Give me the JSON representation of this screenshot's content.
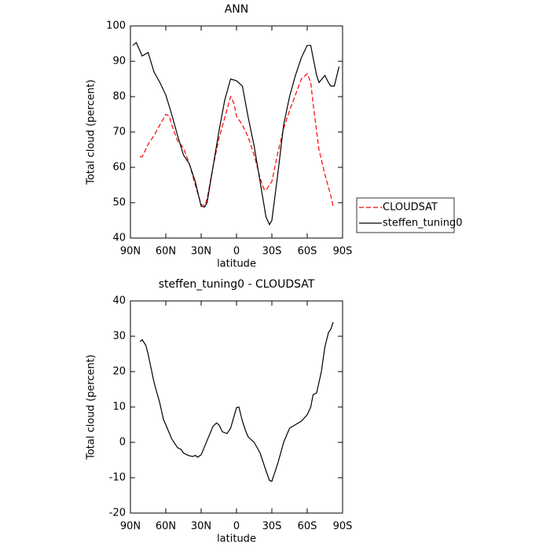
{
  "chart_data": [
    {
      "type": "line",
      "title": "ANN",
      "x_label": "latitude",
      "y_label": "Total cloud (percent)",
      "xlim": [
        90,
        -90
      ],
      "xticks": [
        {
          "value": 90,
          "label": "90N"
        },
        {
          "value": 60,
          "label": "60N"
        },
        {
          "value": 30,
          "label": "30N"
        },
        0,
        {
          "value": -30,
          "label": "30S"
        },
        {
          "value": -60,
          "label": "60S"
        },
        {
          "value": -90,
          "label": "90S"
        }
      ],
      "ylim": [
        40,
        100
      ],
      "yticks": [
        40,
        50,
        60,
        70,
        80,
        90,
        100
      ],
      "legend": "right",
      "series": [
        {
          "name": "CLOUDSAT",
          "color": "#ff0000",
          "dash": "dashed",
          "x": [
            82,
            80,
            75,
            70,
            65,
            60,
            57,
            55,
            50,
            45,
            40,
            35,
            30,
            27,
            25,
            20,
            15,
            10,
            5,
            2,
            0,
            -5,
            -10,
            -15,
            -20,
            -23,
            -25,
            -30,
            -35,
            -40,
            -45,
            -50,
            -55,
            -60,
            -63,
            -65,
            -70,
            -75,
            -80,
            -82
          ],
          "values": [
            63,
            63,
            66.5,
            69,
            72,
            75,
            74.5,
            72,
            67.5,
            65.5,
            61,
            55,
            49.5,
            49.2,
            51,
            60,
            68,
            74,
            80,
            78,
            74.5,
            72,
            68.5,
            63.5,
            57,
            54,
            53.5,
            56,
            64,
            71,
            76,
            80.5,
            85,
            86.5,
            84,
            78,
            65,
            58,
            52,
            49
          ]
        },
        {
          "name": "steffen_tuning0",
          "color": "#000000",
          "dash": "solid",
          "x": [
            88,
            85,
            80,
            75,
            70,
            65,
            60,
            55,
            50,
            45,
            40,
            35,
            30,
            27,
            25,
            20,
            15,
            10,
            5,
            0,
            -5,
            -10,
            -15,
            -20,
            -25,
            -28,
            -30,
            -35,
            -40,
            -45,
            -50,
            -55,
            -60,
            -63,
            -65,
            -68,
            -70,
            -75,
            -78,
            -80,
            -83,
            -87
          ],
          "values": [
            94.5,
            95.3,
            91.5,
            92.5,
            87,
            84,
            80.5,
            75,
            69,
            63.5,
            61,
            56,
            49,
            48.8,
            50,
            60,
            70,
            79,
            85,
            84.5,
            83,
            74,
            66,
            56,
            46,
            43.8,
            45,
            58,
            72,
            80,
            86,
            91,
            94.5,
            94.5,
            91,
            86,
            84,
            86,
            84,
            83,
            83,
            88.5
          ]
        }
      ]
    },
    {
      "type": "line",
      "title": "steffen_tuning0 - CLOUDSAT",
      "x_label": "latitude",
      "y_label": "Total cloud (percent)",
      "xlim": [
        90,
        -90
      ],
      "xticks": [
        {
          "value": 90,
          "label": "90N"
        },
        {
          "value": 60,
          "label": "60N"
        },
        {
          "value": 30,
          "label": "30N"
        },
        0,
        {
          "value": -30,
          "label": "30S"
        },
        {
          "value": -60,
          "label": "60S"
        },
        {
          "value": -90,
          "label": "90S"
        }
      ],
      "ylim": [
        -20,
        40
      ],
      "yticks": [
        -20,
        -10,
        0,
        10,
        20,
        30,
        40
      ],
      "series": [
        {
          "color": "#000000",
          "dash": "solid",
          "x": [
            82,
            80,
            77,
            75,
            70,
            65,
            62,
            60,
            55,
            50,
            47,
            45,
            42,
            40,
            37,
            35,
            33,
            30,
            25,
            20,
            17,
            15,
            12,
            8,
            5,
            2,
            0,
            -2,
            -5,
            -8,
            -10,
            -15,
            -20,
            -25,
            -28,
            -30,
            -35,
            -40,
            -45,
            -50,
            -55,
            -60,
            -63,
            -65,
            -68,
            -72,
            -75,
            -78,
            -80,
            -82
          ],
          "values": [
            28.5,
            29,
            27.5,
            25,
            17,
            11,
            6.5,
            5,
            1,
            -1.5,
            -2,
            -3,
            -3.5,
            -3.8,
            -4,
            -3.7,
            -4.2,
            -3.5,
            0.5,
            4.5,
            5.5,
            5,
            3,
            2.5,
            4,
            7.5,
            9.8,
            10,
            6,
            3,
            1.5,
            0,
            -3,
            -8,
            -10.8,
            -11,
            -6,
            0,
            4,
            5,
            6,
            7.8,
            10,
            13.5,
            14,
            20,
            27,
            31,
            32,
            34
          ]
        }
      ]
    }
  ]
}
